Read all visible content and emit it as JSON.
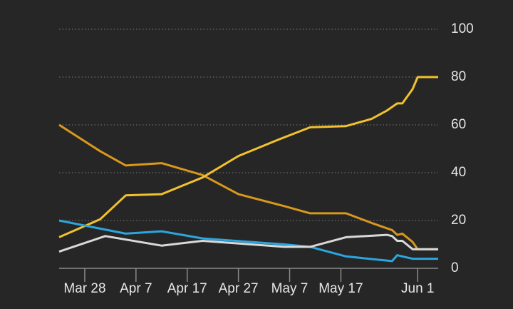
{
  "chart_data": {
    "type": "line",
    "xlim": [
      "Mar 23",
      "Jun 5"
    ],
    "xticks": [
      "Mar 28",
      "Apr 7",
      "Apr 17",
      "Apr 27",
      "May 7",
      "May 17",
      "Jun 1"
    ],
    "ylim": [
      0,
      100
    ],
    "yticks": [
      0,
      20,
      40,
      60,
      80,
      100
    ],
    "grid": true,
    "series": [
      {
        "color": "#d8981e",
        "x": [
          "Mar 23",
          "Mar 31",
          "Apr 5",
          "Apr 12",
          "Apr 20",
          "Apr 27",
          "May 6",
          "May 11",
          "May 18",
          "May 23",
          "May 27",
          "May 28",
          "May 29",
          "May 31",
          "Jun 1",
          "Jun 5"
        ],
        "values": [
          60,
          49,
          43,
          44,
          39,
          31,
          26,
          23,
          23,
          19,
          16,
          14,
          14.5,
          11,
          8,
          8
        ]
      },
      {
        "color": "#f2c12e",
        "x": [
          "Mar 23",
          "Mar 31",
          "Apr 5",
          "Apr 12",
          "Apr 20",
          "Apr 27",
          "May 5",
          "May 11",
          "May 18",
          "May 23",
          "May 26",
          "May 28",
          "May 29",
          "May 31",
          "Jun 1",
          "Jun 5"
        ],
        "values": [
          13,
          20.5,
          30.5,
          31,
          38,
          47,
          54,
          59,
          59.5,
          62.5,
          66,
          69,
          69,
          75,
          80,
          80
        ]
      },
      {
        "color": "#2ba6de",
        "x": [
          "Mar 23",
          "Apr 5",
          "Apr 12",
          "Apr 20",
          "May 6",
          "May 11",
          "May 18",
          "May 27",
          "May 28",
          "May 29",
          "May 31",
          "Jun 5"
        ],
        "values": [
          20,
          14.5,
          15.5,
          12.5,
          10,
          9,
          5,
          3,
          5.5,
          5,
          4,
          4
        ]
      },
      {
        "color": "#d9d9d9",
        "x": [
          "Mar 23",
          "Apr 1",
          "Apr 12",
          "Apr 20",
          "May 6",
          "May 11",
          "May 18",
          "May 26",
          "May 27",
          "May 28",
          "May 29",
          "May 31",
          "Jun 5"
        ],
        "values": [
          7,
          13.5,
          9.5,
          11.5,
          9,
          9,
          13,
          14,
          13.5,
          11.5,
          11.5,
          8,
          8
        ]
      }
    ]
  }
}
